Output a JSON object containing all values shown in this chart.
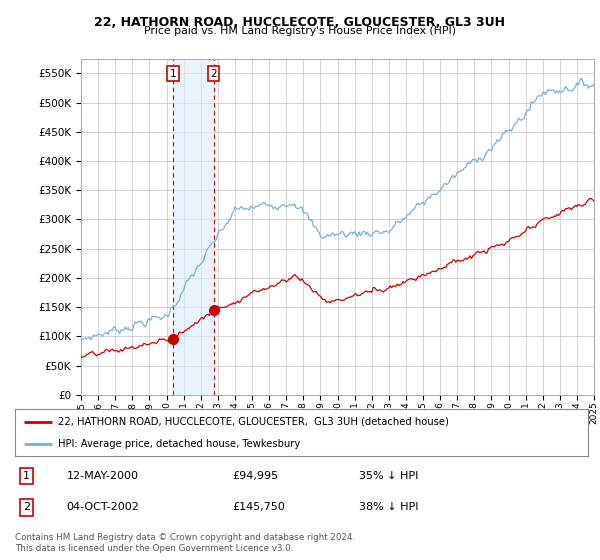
{
  "title1": "22, HATHORN ROAD, HUCCLECOTE, GLOUCESTER, GL3 3UH",
  "title2": "Price paid vs. HM Land Registry's House Price Index (HPI)",
  "red_label": "22, HATHORN ROAD, HUCCLECOTE, GLOUCESTER,  GL3 3UH (detached house)",
  "blue_label": "HPI: Average price, detached house, Tewkesbury",
  "transaction1_date": "12-MAY-2000",
  "transaction1_price": "£94,995",
  "transaction1_hpi": "35% ↓ HPI",
  "transaction1_year": 2000.37,
  "transaction1_value": 94995,
  "transaction2_date": "04-OCT-2002",
  "transaction2_price": "£145,750",
  "transaction2_hpi": "38% ↓ HPI",
  "transaction2_year": 2002.75,
  "transaction2_value": 145750,
  "footer": "Contains HM Land Registry data © Crown copyright and database right 2024.\nThis data is licensed under the Open Government Licence v3.0.",
  "ylim": [
    0,
    575000
  ],
  "yticks": [
    0,
    50000,
    100000,
    150000,
    200000,
    250000,
    300000,
    350000,
    400000,
    450000,
    500000,
    550000
  ],
  "background_color": "#ffffff",
  "grid_color": "#cccccc",
  "red_color": "#cc0000",
  "blue_color": "#7ab0d4",
  "shade_color": "#ddeeff"
}
